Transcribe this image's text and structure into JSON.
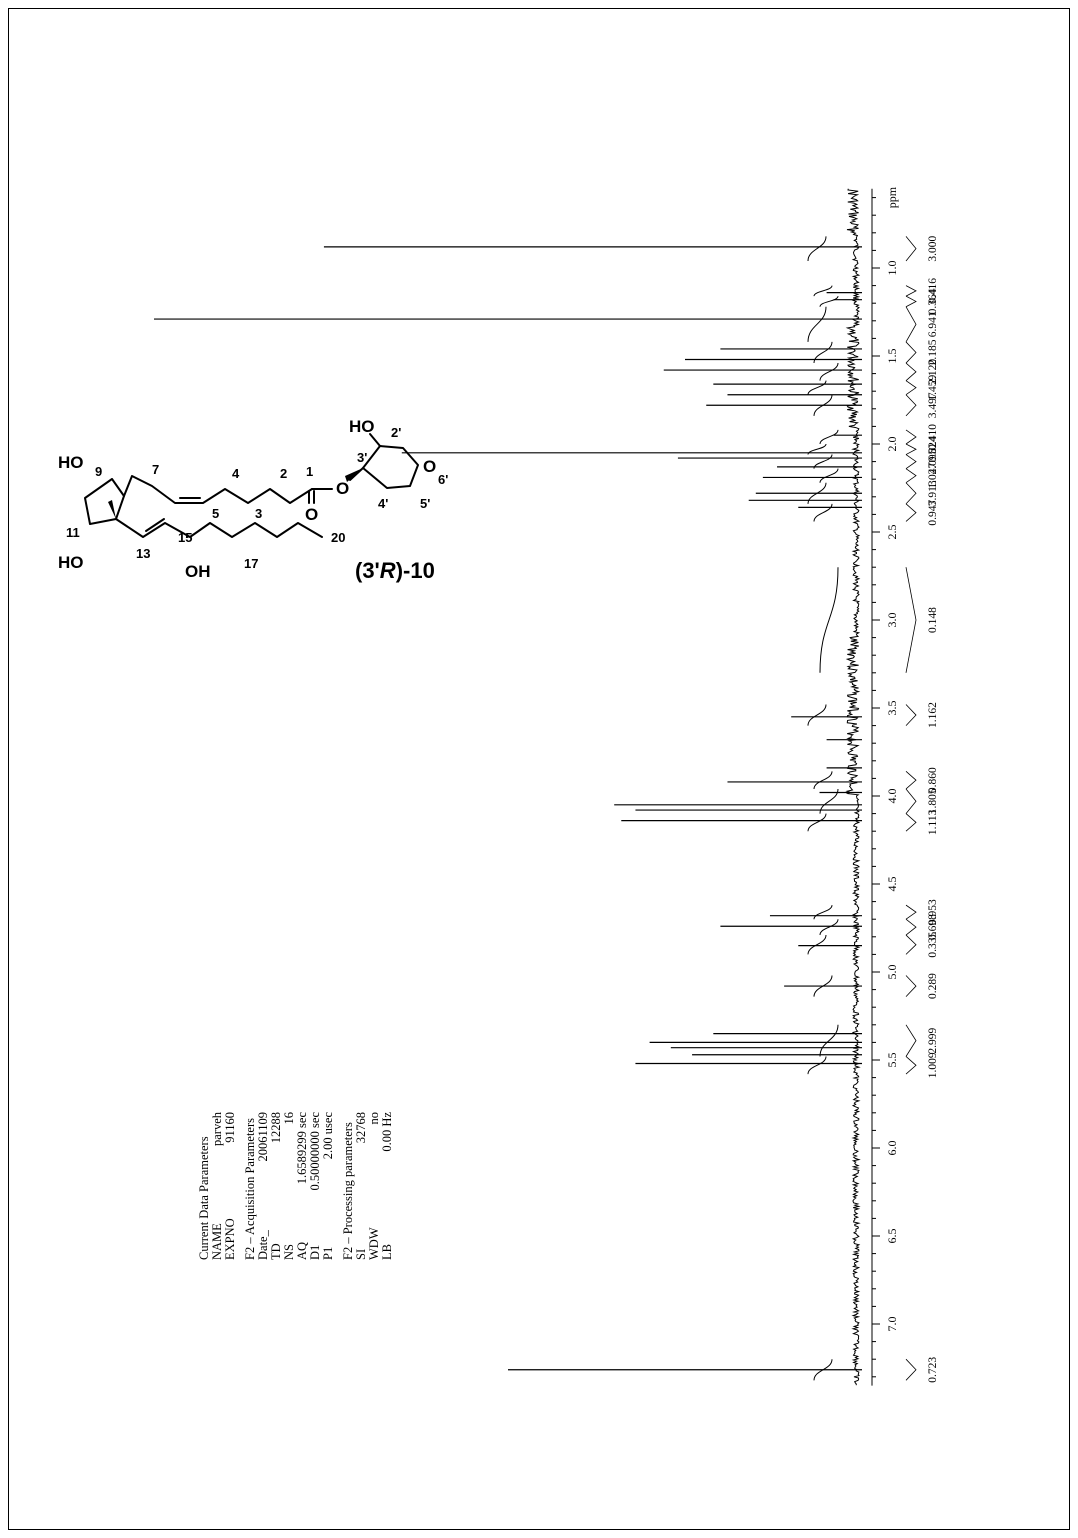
{
  "chart_data": {
    "type": "line",
    "title": "",
    "xlabel": "ppm",
    "ylabel": "",
    "x_axis": {
      "unit": "ppm",
      "range": [
        0.55,
        7.35
      ],
      "reversed": true,
      "ticks": [
        "1.0",
        "1.5",
        "2.0",
        "2.5",
        "3.0",
        "3.5",
        "4.0",
        "4.5",
        "5.0",
        "5.5",
        "6.0",
        "6.5",
        "7.0"
      ]
    },
    "peaks": [
      {
        "ppm": 0.88,
        "rel_height": 0.76
      },
      {
        "ppm": 1.14,
        "rel_height": 0.05
      },
      {
        "ppm": 1.18,
        "rel_height": 0.04
      },
      {
        "ppm": 1.29,
        "rel_height": 1.0
      },
      {
        "ppm": 1.46,
        "rel_height": 0.2
      },
      {
        "ppm": 1.52,
        "rel_height": 0.25
      },
      {
        "ppm": 1.58,
        "rel_height": 0.28
      },
      {
        "ppm": 1.66,
        "rel_height": 0.21
      },
      {
        "ppm": 1.72,
        "rel_height": 0.19
      },
      {
        "ppm": 1.78,
        "rel_height": 0.22
      },
      {
        "ppm": 1.95,
        "rel_height": 0.04
      },
      {
        "ppm": 2.05,
        "rel_height": 0.65
      },
      {
        "ppm": 2.08,
        "rel_height": 0.26
      },
      {
        "ppm": 2.13,
        "rel_height": 0.12
      },
      {
        "ppm": 2.19,
        "rel_height": 0.14
      },
      {
        "ppm": 2.28,
        "rel_height": 0.15
      },
      {
        "ppm": 2.32,
        "rel_height": 0.16
      },
      {
        "ppm": 2.36,
        "rel_height": 0.09
      },
      {
        "ppm": 3.55,
        "rel_height": 0.1
      },
      {
        "ppm": 3.68,
        "rel_height": 0.05
      },
      {
        "ppm": 3.84,
        "rel_height": 0.05
      },
      {
        "ppm": 3.92,
        "rel_height": 0.19
      },
      {
        "ppm": 3.98,
        "rel_height": 0.06
      },
      {
        "ppm": 4.05,
        "rel_height": 0.35
      },
      {
        "ppm": 4.08,
        "rel_height": 0.32
      },
      {
        "ppm": 4.14,
        "rel_height": 0.34
      },
      {
        "ppm": 4.68,
        "rel_height": 0.13
      },
      {
        "ppm": 4.74,
        "rel_height": 0.2
      },
      {
        "ppm": 4.85,
        "rel_height": 0.09
      },
      {
        "ppm": 5.08,
        "rel_height": 0.11
      },
      {
        "ppm": 5.35,
        "rel_height": 0.21
      },
      {
        "ppm": 5.4,
        "rel_height": 0.3
      },
      {
        "ppm": 5.43,
        "rel_height": 0.27
      },
      {
        "ppm": 5.47,
        "rel_height": 0.24
      },
      {
        "ppm": 5.52,
        "rel_height": 0.32
      },
      {
        "ppm": 7.26,
        "rel_height": 0.5
      }
    ],
    "integrals": [
      {
        "label": "3.000",
        "from": 0.82,
        "to": 0.96
      },
      {
        "label": "0.416",
        "from": 1.1,
        "to": 1.16
      },
      {
        "label": "0.364",
        "from": 1.16,
        "to": 1.22
      },
      {
        "label": "6.941",
        "from": 1.22,
        "to": 1.42
      },
      {
        "label": "2.185",
        "from": 1.42,
        "to": 1.54
      },
      {
        "label": "2.120",
        "from": 1.54,
        "to": 1.64
      },
      {
        "label": "1.459",
        "from": 1.64,
        "to": 1.72
      },
      {
        "label": "3.497",
        "from": 1.72,
        "to": 1.84
      },
      {
        "label": "0.410",
        "from": 1.92,
        "to": 2.0
      },
      {
        "label": "0.824",
        "from": 2.0,
        "to": 2.06
      },
      {
        "label": "2.095",
        "from": 2.06,
        "to": 2.14
      },
      {
        "label": "1.047",
        "from": 2.14,
        "to": 2.22
      },
      {
        "label": "3.913",
        "from": 2.22,
        "to": 2.34
      },
      {
        "label": "0.947",
        "from": 2.34,
        "to": 2.44
      },
      {
        "label": "0.148",
        "from": 2.7,
        "to": 3.3
      },
      {
        "label": "1.162",
        "from": 3.48,
        "to": 3.6
      },
      {
        "label": "0.860",
        "from": 3.86,
        "to": 3.96
      },
      {
        "label": "1.805",
        "from": 3.96,
        "to": 4.1
      },
      {
        "label": "1.113",
        "from": 4.1,
        "to": 4.2
      },
      {
        "label": "0.953",
        "from": 4.62,
        "to": 4.7
      },
      {
        "label": "0.698",
        "from": 4.7,
        "to": 4.79
      },
      {
        "label": "0.335",
        "from": 4.79,
        "to": 4.9
      },
      {
        "label": "0.289",
        "from": 5.02,
        "to": 5.14
      },
      {
        "label": "2.999",
        "from": 5.3,
        "to": 5.48
      },
      {
        "label": "1.009",
        "from": 5.48,
        "to": 5.58
      },
      {
        "label": "0.723",
        "from": 7.2,
        "to": 7.32
      }
    ]
  },
  "params": {
    "current": {
      "heading": "Current Data Parameters",
      "rows": [
        {
          "name": "NAME",
          "value": "parveh"
        },
        {
          "name": "EXPNO",
          "value": "91160"
        }
      ]
    },
    "acquisition": {
      "heading": "F2 – Acquisition Parameters",
      "rows": [
        {
          "name": "Date_",
          "value": "20061109"
        },
        {
          "name": "TD",
          "value": "12288"
        },
        {
          "name": "NS",
          "value": "16"
        },
        {
          "name": "AQ",
          "value": "1.6589299 sec"
        },
        {
          "name": "D1",
          "value": "0.50000000 sec"
        },
        {
          "name": "P1",
          "value": "2.00 usec"
        }
      ]
    },
    "processing": {
      "heading": "F2 – Processing parameters",
      "rows": [
        {
          "name": "SI",
          "value": "32768"
        },
        {
          "name": "WDW",
          "value": "no"
        },
        {
          "name": "LB",
          "value": "0.00 Hz"
        }
      ]
    }
  },
  "structure": {
    "compound_label_prefix": "(3'",
    "compound_label_italic": "R",
    "compound_label_suffix": ")-10",
    "atoms": {
      "ho9": "HO",
      "ho11": "HO",
      "oh15": "OH",
      "ho2p": "HO",
      "o_ester": "O",
      "o_carbonyl": "O",
      "o_ring": "O"
    },
    "numbers": {
      "n9": "9",
      "n7": "7",
      "n4": "4",
      "n2": "2",
      "n1": "1",
      "n3": "3",
      "n5": "5",
      "n11": "11",
      "n13": "13",
      "n15": "15",
      "n17": "17",
      "n20": "20",
      "n2p": "2'",
      "n3p": "3'",
      "n4p": "4'",
      "n5p": "5'",
      "n6p": "6'"
    }
  }
}
